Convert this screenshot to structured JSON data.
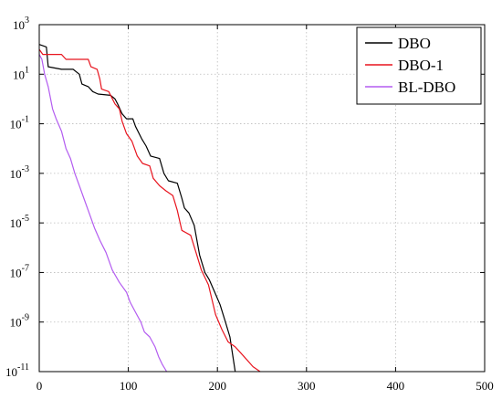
{
  "chart_data": {
    "type": "line",
    "title": "",
    "xlabel": "",
    "ylabel": "",
    "xlim": [
      0,
      500
    ],
    "ylim_exp": [
      -11,
      3
    ],
    "y_scale": "log",
    "grid": true,
    "legend_position": "top-right",
    "x_ticks": [
      "0",
      "100",
      "200",
      "300",
      "400",
      "500"
    ],
    "y_ticks": [
      {
        "base": "10",
        "exp": "3",
        "value": 3
      },
      {
        "base": "10",
        "exp": "1",
        "value": 1
      },
      {
        "base": "10",
        "exp": "-1",
        "value": -1
      },
      {
        "base": "10",
        "exp": "-3",
        "value": -3
      },
      {
        "base": "10",
        "exp": "-5",
        "value": -5
      },
      {
        "base": "10",
        "exp": "-7",
        "value": -7
      },
      {
        "base": "10",
        "exp": "-9",
        "value": -9
      },
      {
        "base": "10",
        "exp": "-11",
        "value": -11
      }
    ],
    "series": [
      {
        "name": "DBO",
        "color": "#000000",
        "points": [
          [
            0,
            2.2
          ],
          [
            8,
            2.1
          ],
          [
            10,
            1.3
          ],
          [
            25,
            1.2
          ],
          [
            38,
            1.2
          ],
          [
            45,
            1.0
          ],
          [
            48,
            0.6
          ],
          [
            55,
            0.5
          ],
          [
            60,
            0.3
          ],
          [
            66,
            0.2
          ],
          [
            80,
            0.15
          ],
          [
            85,
            0.0
          ],
          [
            88,
            -0.2
          ],
          [
            93,
            -0.6
          ],
          [
            98,
            -0.8
          ],
          [
            105,
            -0.8
          ],
          [
            108,
            -1.1
          ],
          [
            115,
            -1.6
          ],
          [
            120,
            -1.9
          ],
          [
            125,
            -2.3
          ],
          [
            135,
            -2.4
          ],
          [
            140,
            -3.0
          ],
          [
            145,
            -3.3
          ],
          [
            155,
            -3.4
          ],
          [
            160,
            -4.0
          ],
          [
            163,
            -4.4
          ],
          [
            168,
            -4.6
          ],
          [
            174,
            -5.1
          ],
          [
            180,
            -6.3
          ],
          [
            186,
            -7.0
          ],
          [
            191,
            -7.3
          ],
          [
            197,
            -7.8
          ],
          [
            203,
            -8.3
          ],
          [
            209,
            -9.0
          ],
          [
            214,
            -9.6
          ],
          [
            217,
            -10.3
          ],
          [
            220,
            -11.0
          ]
        ]
      },
      {
        "name": "DBO-1",
        "color": "#e8141e",
        "points": [
          [
            0,
            2.0
          ],
          [
            4,
            1.8
          ],
          [
            25,
            1.8
          ],
          [
            30,
            1.6
          ],
          [
            55,
            1.6
          ],
          [
            58,
            1.3
          ],
          [
            65,
            1.2
          ],
          [
            68,
            0.8
          ],
          [
            70,
            0.4
          ],
          [
            78,
            0.3
          ],
          [
            85,
            -0.2
          ],
          [
            90,
            -0.4
          ],
          [
            93,
            -0.9
          ],
          [
            98,
            -1.4
          ],
          [
            104,
            -1.7
          ],
          [
            110,
            -2.3
          ],
          [
            116,
            -2.6
          ],
          [
            124,
            -2.7
          ],
          [
            128,
            -3.2
          ],
          [
            135,
            -3.5
          ],
          [
            142,
            -3.7
          ],
          [
            150,
            -3.9
          ],
          [
            155,
            -4.5
          ],
          [
            160,
            -5.3
          ],
          [
            170,
            -5.5
          ],
          [
            176,
            -6.2
          ],
          [
            182,
            -6.9
          ],
          [
            190,
            -7.5
          ],
          [
            198,
            -8.7
          ],
          [
            205,
            -9.3
          ],
          [
            212,
            -9.8
          ],
          [
            220,
            -10.0
          ],
          [
            230,
            -10.4
          ],
          [
            240,
            -10.8
          ],
          [
            248,
            -11.0
          ]
        ]
      },
      {
        "name": "BL-DBO",
        "color": "#b35cf0",
        "points": [
          [
            0,
            1.8
          ],
          [
            3,
            1.6
          ],
          [
            6,
            1.0
          ],
          [
            10,
            0.5
          ],
          [
            15,
            -0.4
          ],
          [
            19,
            -0.8
          ],
          [
            25,
            -1.3
          ],
          [
            30,
            -2.0
          ],
          [
            35,
            -2.4
          ],
          [
            40,
            -3.0
          ],
          [
            46,
            -3.6
          ],
          [
            50,
            -4.0
          ],
          [
            56,
            -4.6
          ],
          [
            62,
            -5.2
          ],
          [
            68,
            -5.7
          ],
          [
            75,
            -6.2
          ],
          [
            82,
            -6.9
          ],
          [
            90,
            -7.4
          ],
          [
            98,
            -7.8
          ],
          [
            102,
            -8.2
          ],
          [
            108,
            -8.6
          ],
          [
            114,
            -9.0
          ],
          [
            118,
            -9.4
          ],
          [
            124,
            -9.6
          ],
          [
            130,
            -10.0
          ],
          [
            134,
            -10.4
          ],
          [
            138,
            -10.7
          ],
          [
            143,
            -11.0
          ]
        ]
      }
    ]
  }
}
